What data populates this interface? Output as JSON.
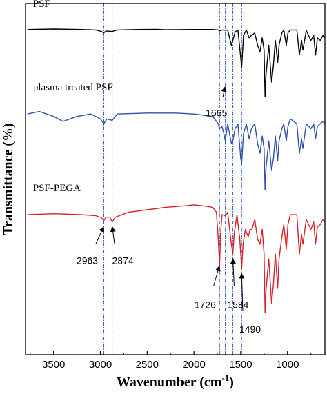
{
  "chart_data": {
    "type": "line",
    "xlabel": "Wavenumber (cm",
    "xlabel_sup": "-1",
    "xlabel_tail": ")",
    "ylabel": "Transmittance (%)",
    "xlim": [
      3800,
      600
    ],
    "x_reversed": true,
    "xticks": [
      {
        "value": 3500,
        "label": "3500"
      },
      {
        "value": 3000,
        "label": "3000"
      },
      {
        "value": 2500,
        "label": "2500"
      },
      {
        "value": 2000,
        "label": "2000"
      },
      {
        "value": 1500,
        "label": "1500"
      },
      {
        "value": 1000,
        "label": "1000"
      }
    ],
    "grid": false,
    "y_ticks_shown": false,
    "reference_lines": [
      2963,
      2874,
      1726,
      1665,
      1584,
      1490
    ],
    "reference_line_color": "#3b5fc0",
    "series": [
      {
        "name": "PSF",
        "color": "#000000",
        "label_x": 3720,
        "label_offset": 0.48,
        "offset": 0.8,
        "points": [
          [
            3780,
            0.02
          ],
          [
            3500,
            0.03
          ],
          [
            3200,
            0.02
          ],
          [
            3050,
            0.01
          ],
          [
            2990,
            -0.02
          ],
          [
            2963,
            -0.05
          ],
          [
            2940,
            -0.01
          ],
          [
            2874,
            -0.02
          ],
          [
            2820,
            0.01
          ],
          [
            2600,
            0.02
          ],
          [
            2400,
            0.025
          ],
          [
            2300,
            0.015
          ],
          [
            2000,
            0.02
          ],
          [
            1800,
            0.02
          ],
          [
            1740,
            0.01
          ],
          [
            1726,
            -0.01
          ],
          [
            1700,
            0.01
          ],
          [
            1665,
            0.005
          ],
          [
            1640,
            0.01
          ],
          [
            1600,
            -0.3
          ],
          [
            1584,
            -0.2
          ],
          [
            1560,
            -0.03
          ],
          [
            1530,
            0.01
          ],
          [
            1500,
            -0.55
          ],
          [
            1490,
            -0.75
          ],
          [
            1470,
            -0.1
          ],
          [
            1440,
            0.01
          ],
          [
            1410,
            -0.15
          ],
          [
            1385,
            -0.1
          ],
          [
            1350,
            -0.05
          ],
          [
            1320,
            -0.3
          ],
          [
            1294,
            -0.43
          ],
          [
            1270,
            -0.15
          ],
          [
            1250,
            -0.4
          ],
          [
            1240,
            -1.35
          ],
          [
            1230,
            -0.9
          ],
          [
            1200,
            -0.3
          ],
          [
            1170,
            -1.05
          ],
          [
            1150,
            -0.7
          ],
          [
            1130,
            -0.2
          ],
          [
            1105,
            -0.65
          ],
          [
            1090,
            -0.3
          ],
          [
            1060,
            -0.05
          ],
          [
            1040,
            0.01
          ],
          [
            1013,
            -0.3
          ],
          [
            995,
            -0.05
          ],
          [
            970,
            0.01
          ],
          [
            900,
            0.01
          ],
          [
            873,
            -0.5
          ],
          [
            850,
            -0.2
          ],
          [
            835,
            -0.4
          ],
          [
            800,
            0.0
          ],
          [
            750,
            -0.2
          ],
          [
            720,
            -0.1
          ],
          [
            700,
            -0.5
          ],
          [
            680,
            -0.15
          ],
          [
            650,
            -0.2
          ],
          [
            620,
            -0.1
          ],
          [
            600,
            -0.15
          ]
        ]
      },
      {
        "name": "plasma treated PSF",
        "color": "#2e50a8",
        "label_x": 3720,
        "label_offset": 0.48,
        "offset": -0.9,
        "points": [
          [
            3780,
            0.0
          ],
          [
            3650,
            0.05
          ],
          [
            3500,
            -0.05
          ],
          [
            3400,
            -0.15
          ],
          [
            3250,
            -0.05
          ],
          [
            3100,
            0.0
          ],
          [
            3000,
            -0.1
          ],
          [
            2963,
            -0.2
          ],
          [
            2930,
            -0.1
          ],
          [
            2874,
            -0.13
          ],
          [
            2820,
            0.0
          ],
          [
            2500,
            0.02
          ],
          [
            2200,
            0.02
          ],
          [
            2000,
            0.0
          ],
          [
            1800,
            -0.05
          ],
          [
            1740,
            -0.2
          ],
          [
            1726,
            -0.3
          ],
          [
            1700,
            -0.25
          ],
          [
            1680,
            -0.4
          ],
          [
            1665,
            -0.55
          ],
          [
            1640,
            -0.2
          ],
          [
            1600,
            -0.6
          ],
          [
            1584,
            -0.55
          ],
          [
            1560,
            -0.3
          ],
          [
            1530,
            -0.2
          ],
          [
            1500,
            -0.9
          ],
          [
            1490,
            -1.0
          ],
          [
            1470,
            -0.4
          ],
          [
            1440,
            -0.2
          ],
          [
            1410,
            -0.5
          ],
          [
            1385,
            -0.3
          ],
          [
            1350,
            -0.2
          ],
          [
            1320,
            -0.6
          ],
          [
            1294,
            -0.8
          ],
          [
            1270,
            -0.45
          ],
          [
            1250,
            -0.7
          ],
          [
            1240,
            -1.55
          ],
          [
            1230,
            -1.1
          ],
          [
            1200,
            -0.55
          ],
          [
            1170,
            -1.15
          ],
          [
            1150,
            -0.9
          ],
          [
            1130,
            -0.45
          ],
          [
            1105,
            -0.95
          ],
          [
            1090,
            -0.55
          ],
          [
            1060,
            -0.3
          ],
          [
            1040,
            -0.2
          ],
          [
            1013,
            -0.55
          ],
          [
            995,
            -0.25
          ],
          [
            970,
            -0.1
          ],
          [
            900,
            -0.2
          ],
          [
            873,
            -0.8
          ],
          [
            850,
            -0.5
          ],
          [
            835,
            -0.7
          ],
          [
            800,
            -0.2
          ],
          [
            750,
            -0.3
          ],
          [
            720,
            -0.2
          ],
          [
            700,
            -0.5
          ],
          [
            680,
            -0.25
          ],
          [
            650,
            -0.2
          ],
          [
            620,
            -0.15
          ],
          [
            600,
            -0.2
          ]
        ]
      },
      {
        "name": "PSF-PEGA",
        "color": "#d92027",
        "label_x": 3720,
        "label_offset": 0.48,
        "offset": -2.95,
        "points": [
          [
            3780,
            0.0
          ],
          [
            3500,
            0.02
          ],
          [
            3200,
            0.0
          ],
          [
            3050,
            -0.02
          ],
          [
            2990,
            -0.06
          ],
          [
            2963,
            -0.12
          ],
          [
            2940,
            -0.05
          ],
          [
            2900,
            -0.05
          ],
          [
            2874,
            -0.15
          ],
          [
            2840,
            -0.05
          ],
          [
            2700,
            0.05
          ],
          [
            2500,
            0.1
          ],
          [
            2300,
            0.15
          ],
          [
            2100,
            0.18
          ],
          [
            2000,
            0.2
          ],
          [
            1900,
            0.18
          ],
          [
            1800,
            0.15
          ],
          [
            1760,
            0.05
          ],
          [
            1740,
            -0.5
          ],
          [
            1726,
            -1.05
          ],
          [
            1715,
            -0.4
          ],
          [
            1700,
            0.0
          ],
          [
            1665,
            -0.02
          ],
          [
            1640,
            0.05
          ],
          [
            1600,
            -0.6
          ],
          [
            1584,
            -0.8
          ],
          [
            1570,
            -0.4
          ],
          [
            1540,
            0.0
          ],
          [
            1510,
            -0.5
          ],
          [
            1490,
            -1.1
          ],
          [
            1475,
            -0.6
          ],
          [
            1450,
            -0.3
          ],
          [
            1420,
            -0.45
          ],
          [
            1400,
            -0.3
          ],
          [
            1380,
            -0.3
          ],
          [
            1350,
            -0.1
          ],
          [
            1320,
            -0.5
          ],
          [
            1294,
            -0.6
          ],
          [
            1270,
            -0.3
          ],
          [
            1250,
            -0.8
          ],
          [
            1240,
            -2.0
          ],
          [
            1228,
            -1.5
          ],
          [
            1200,
            -0.9
          ],
          [
            1170,
            -1.8
          ],
          [
            1150,
            -1.4
          ],
          [
            1130,
            -0.8
          ],
          [
            1105,
            -1.5
          ],
          [
            1090,
            -0.9
          ],
          [
            1060,
            -0.45
          ],
          [
            1040,
            -0.2
          ],
          [
            1013,
            -0.7
          ],
          [
            995,
            -0.2
          ],
          [
            970,
            0.0
          ],
          [
            900,
            0.0
          ],
          [
            873,
            -0.8
          ],
          [
            850,
            -0.4
          ],
          [
            835,
            -0.6
          ],
          [
            800,
            -0.1
          ],
          [
            750,
            -0.3
          ],
          [
            720,
            -0.15
          ],
          [
            700,
            -0.6
          ],
          [
            680,
            -0.25
          ],
          [
            650,
            -0.2
          ],
          [
            620,
            -0.1
          ],
          [
            600,
            -0.15
          ]
        ]
      }
    ],
    "annotations": [
      {
        "label": "1665",
        "text_x": 1760,
        "text_offset": -0.95,
        "arrow_from": [
          1690,
          -0.55
        ],
        "arrow_to": [
          1668,
          -0.35
        ]
      },
      {
        "label": "2963",
        "text_x": 3140,
        "text_offset": -3.95,
        "arrow_from": [
          3050,
          -3.55
        ],
        "arrow_to": [
          2966,
          -3.2
        ]
      },
      {
        "label": "2874",
        "text_x": 2760,
        "text_offset": -3.95,
        "arrow_from": [
          2848,
          -3.55
        ],
        "arrow_to": [
          2872,
          -3.2
        ]
      },
      {
        "label": "1726",
        "text_x": 1880,
        "text_offset": -4.85,
        "arrow_from": [
          1790,
          -4.4
        ],
        "arrow_to": [
          1730,
          -4.0
        ]
      },
      {
        "label": "1584",
        "text_x": 1530,
        "text_offset": -4.85,
        "arrow_from": [
          1570,
          -4.4
        ],
        "arrow_to": [
          1584,
          -3.85
        ]
      },
      {
        "label": "1490",
        "text_x": 1400,
        "text_offset": -5.35,
        "arrow_from": [
          1478,
          -4.9
        ],
        "arrow_to": [
          1490,
          -4.15
        ]
      }
    ],
    "ylim": [
      -5.8,
      1.35
    ]
  }
}
